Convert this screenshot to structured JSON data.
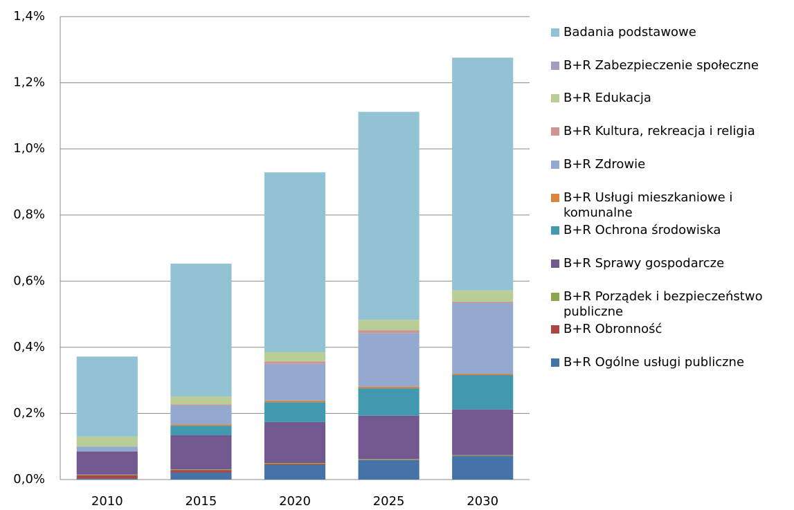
{
  "chart_data": {
    "type": "stacked_bar",
    "categories": [
      "2010",
      "2015",
      "2020",
      "2025",
      "2030"
    ],
    "series": [
      {
        "name": "B+R Ogólne usługi publiczne",
        "color": "#4572a7",
        "values": [
          0.003,
          0.021,
          0.044,
          0.059,
          0.071
        ]
      },
      {
        "name": "B+R Obronność",
        "color": "#aa4643",
        "values": [
          0.01,
          0.008,
          0.003,
          0.001,
          0.001
        ]
      },
      {
        "name": "B+R Porządek i bezpieczeństwo publiczne",
        "color": "#89a54e",
        "values": [
          0.002,
          0.002,
          0.003,
          0.002,
          0.002
        ]
      },
      {
        "name": "B+R Sprawy gospodarcze",
        "color": "#71588f",
        "values": [
          0.07,
          0.103,
          0.124,
          0.131,
          0.138
        ]
      },
      {
        "name": "B+R Ochrona środowiska",
        "color": "#4198af",
        "values": [
          0,
          0.029,
          0.06,
          0.083,
          0.104
        ]
      },
      {
        "name": "B+R Usługi mieszkaniowe i komunalne",
        "color": "#db843d",
        "values": [
          0,
          0.004,
          0.005,
          0.005,
          0.004
        ]
      },
      {
        "name": "B+R Zdrowie",
        "color": "#93a9cf",
        "values": [
          0.015,
          0.057,
          0.111,
          0.162,
          0.214
        ]
      },
      {
        "name": "B+R Kultura, rekreacja i religia",
        "color": "#d19392",
        "values": [
          0,
          0.003,
          0.007,
          0.008,
          0.004
        ]
      },
      {
        "name": "B+R Edukacja",
        "color": "#b9cd96",
        "values": [
          0.03,
          0.024,
          0.028,
          0.032,
          0.034
        ]
      },
      {
        "name": "B+R Zabezpieczenie społeczne",
        "color": "#a99bbd",
        "values": [
          0,
          0,
          0,
          0,
          0
        ]
      },
      {
        "name": "Badania podstawowe",
        "color": "#92c3d5",
        "values": [
          0.242,
          0.402,
          0.544,
          0.629,
          0.704
        ]
      }
    ],
    "ylim": [
      0,
      1.4
    ],
    "yticks": [
      {
        "value": 0,
        "label": "0,0%"
      },
      {
        "value": 0.2,
        "label": "0,2%"
      },
      {
        "value": 0.4,
        "label": "0,4%"
      },
      {
        "value": 0.6,
        "label": "0,6%"
      },
      {
        "value": 0.8,
        "label": "0,8%"
      },
      {
        "value": 1.0,
        "label": "1,0%"
      },
      {
        "value": 1.2,
        "label": "1,2%"
      },
      {
        "value": 1.4,
        "label": "1,4%"
      }
    ],
    "grid": true,
    "legend": "right"
  }
}
